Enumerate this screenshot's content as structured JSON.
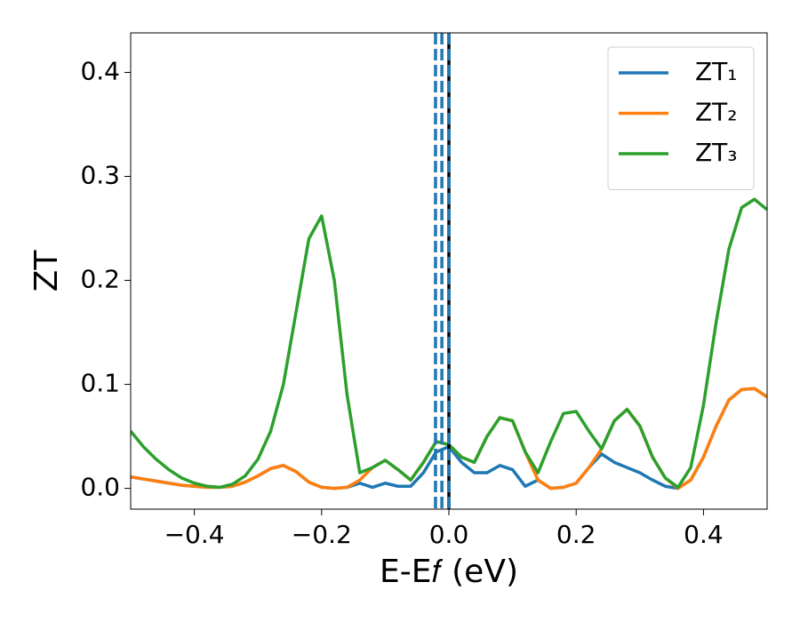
{
  "chart_data": {
    "type": "line",
    "xlabel": "E-E𝑓 (eV)",
    "ylabel": "ZT",
    "x": [
      -0.5,
      -0.48,
      -0.46,
      -0.44,
      -0.42,
      -0.4,
      -0.38,
      -0.36,
      -0.34,
      -0.32,
      -0.3,
      -0.28,
      -0.26,
      -0.24,
      -0.22,
      -0.2,
      -0.18,
      -0.16,
      -0.14,
      -0.12,
      -0.1,
      -0.08,
      -0.06,
      -0.04,
      -0.02,
      0,
      0.02,
      0.04,
      0.06,
      0.08,
      0.1,
      0.12,
      0.14,
      0.16,
      0.18,
      0.2,
      0.22,
      0.24,
      0.26,
      0.28,
      0.3,
      0.32,
      0.34,
      0.36,
      0.38,
      0.4,
      0.42,
      0.44,
      0.46,
      0.48,
      0.5
    ],
    "series": [
      {
        "name": "ZT₁",
        "color": "#1f77b4",
        "values": [
          0.011,
          0.009,
          0.007,
          0.005,
          0.003,
          0.002,
          0.001,
          0.001,
          0.002,
          0.006,
          0.012,
          0.019,
          0.022,
          0.016,
          0.006,
          0.001,
          0.0,
          0.001,
          0.005,
          0.001,
          0.005,
          0.002,
          0.002,
          0.015,
          0.035,
          0.04,
          0.025,
          0.015,
          0.015,
          0.022,
          0.018,
          0.002,
          0.008,
          0.0,
          0.001,
          0.005,
          0.02,
          0.033,
          0.025,
          0.02,
          0.015,
          0.008,
          0.002,
          0.0,
          0.008,
          0.03,
          0.06,
          0.085,
          0.095,
          0.096,
          0.088
        ]
      },
      {
        "name": "ZT₂",
        "color": "#ff7f0e",
        "values": [
          0.011,
          0.009,
          0.007,
          0.005,
          0.003,
          0.002,
          0.001,
          0.001,
          0.002,
          0.006,
          0.012,
          0.019,
          0.022,
          0.016,
          0.006,
          0.001,
          0.0,
          0.001,
          0.008,
          0.02,
          0.027,
          0.018,
          0.008,
          0.025,
          0.045,
          0.042,
          0.03,
          0.025,
          0.05,
          0.068,
          0.065,
          0.035,
          0.008,
          0.0,
          0.001,
          0.005,
          0.02,
          0.038,
          0.065,
          0.076,
          0.06,
          0.03,
          0.01,
          0.0,
          0.008,
          0.03,
          0.06,
          0.085,
          0.095,
          0.096,
          0.088
        ]
      },
      {
        "name": "ZT₃",
        "color": "#2ca02c",
        "values": [
          0.055,
          0.04,
          0.028,
          0.018,
          0.01,
          0.005,
          0.002,
          0.001,
          0.004,
          0.012,
          0.028,
          0.055,
          0.1,
          0.17,
          0.24,
          0.262,
          0.2,
          0.09,
          0.015,
          0.02,
          0.027,
          0.018,
          0.008,
          0.025,
          0.045,
          0.042,
          0.03,
          0.025,
          0.05,
          0.068,
          0.065,
          0.035,
          0.015,
          0.045,
          0.072,
          0.074,
          0.055,
          0.038,
          0.065,
          0.076,
          0.06,
          0.03,
          0.01,
          0.001,
          0.02,
          0.08,
          0.16,
          0.23,
          0.27,
          0.278,
          0.268
        ]
      }
    ],
    "vlines": [
      {
        "x": 0,
        "color": "#000000",
        "dashed": false
      },
      {
        "x": -0.021,
        "color": "#1f77b4",
        "dashed": true
      },
      {
        "x": -0.011,
        "color": "#1f77b4",
        "dashed": true
      },
      {
        "x": 0,
        "color": "#1f77b4",
        "dashed": true
      }
    ],
    "xlim": [
      -0.5,
      0.5
    ],
    "ylim": [
      -0.02,
      0.438
    ],
    "xticks": [
      {
        "value": -0.4,
        "label": "−0.4"
      },
      {
        "value": -0.2,
        "label": "−0.2"
      },
      {
        "value": 0,
        "label": "0.0"
      },
      0.2,
      0.4
    ],
    "yticks": [
      {
        "value": 0,
        "label": "0.0"
      },
      0.1,
      0.2,
      0.3,
      0.4
    ],
    "legend": "upper right",
    "grid": false
  }
}
